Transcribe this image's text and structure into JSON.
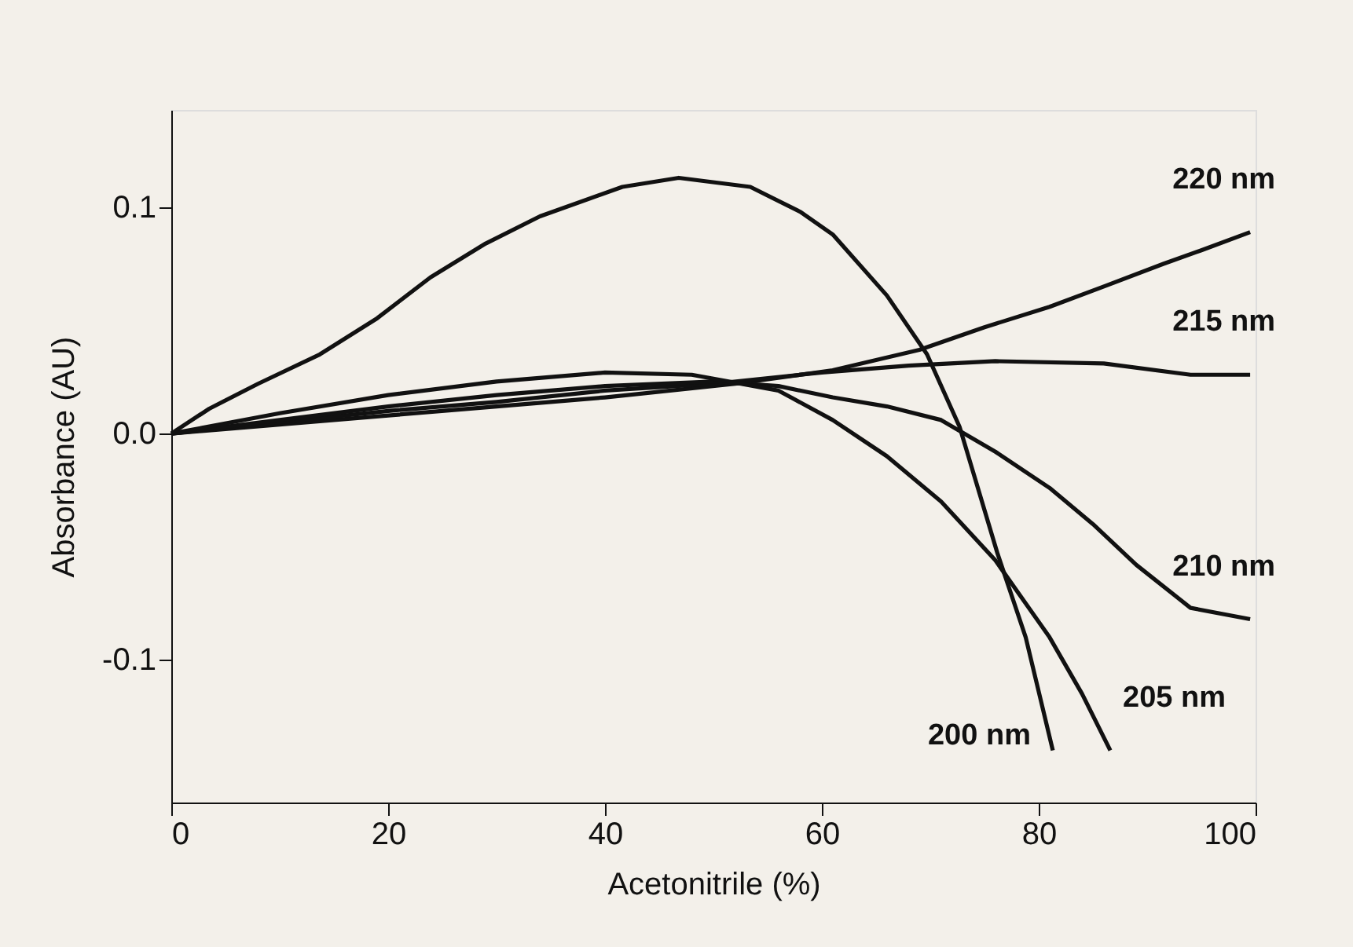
{
  "chart_data": {
    "type": "line",
    "xlabel": "Acetonitrile (%)",
    "ylabel": "Absorbance (AU)",
    "xlim": [
      0,
      100
    ],
    "ylim": [
      -0.163,
      0.143
    ],
    "xticks": [
      0,
      20,
      40,
      60,
      80,
      100
    ],
    "yticks": [
      {
        "value": -0.1,
        "label": "-0.1"
      },
      {
        "value": 0,
        "label": "0.0"
      },
      {
        "value": 0.1,
        "label": "0.1"
      }
    ],
    "grid": false,
    "marker": "none",
    "line_style": "solid",
    "series": [
      {
        "name": "220 nm",
        "color": "#111111",
        "x": [
          0,
          10,
          20,
          30,
          40,
          52,
          61,
          69,
          75,
          81,
          86,
          91.5,
          95,
          99.5
        ],
        "values": [
          0,
          0.004,
          0.008,
          0.012,
          0.016,
          0.022,
          0.028,
          0.037,
          0.047,
          0.056,
          0.065,
          0.075,
          0.081,
          0.089
        ]
      },
      {
        "name": "215 nm",
        "color": "#111111",
        "x": [
          0,
          10,
          20,
          30,
          40,
          50,
          60,
          68,
          76,
          86,
          94,
          99.5
        ],
        "values": [
          0,
          0.005,
          0.01,
          0.014,
          0.019,
          0.022,
          0.027,
          0.03,
          0.032,
          0.031,
          0.026,
          0.026
        ]
      },
      {
        "name": "210 nm",
        "color": "#111111",
        "x": [
          0,
          10,
          20,
          30,
          40,
          50,
          56,
          61,
          66,
          71,
          76,
          81,
          85,
          89,
          94,
          99.5
        ],
        "values": [
          0,
          0.006,
          0.012,
          0.017,
          0.021,
          0.023,
          0.021,
          0.016,
          0.012,
          0.006,
          -0.008,
          -0.024,
          -0.04,
          -0.058,
          -0.077,
          -0.082
        ]
      },
      {
        "name": "205 nm",
        "color": "#111111",
        "x": [
          0,
          10,
          20,
          30,
          40,
          48,
          56,
          61,
          66,
          71,
          76,
          81,
          84,
          86.6
        ],
        "values": [
          0,
          0.009,
          0.017,
          0.023,
          0.027,
          0.026,
          0.019,
          0.006,
          -0.01,
          -0.03,
          -0.056,
          -0.09,
          -0.115,
          -0.14
        ]
      },
      {
        "name": "200 nm",
        "color": "#111111",
        "x": [
          0,
          3.5,
          8,
          13.7,
          19,
          23.9,
          29,
          34,
          41.6,
          46.8,
          53.4,
          58,
          61,
          66,
          69.7,
          72.7,
          76.2,
          78.8,
          81.3
        ],
        "values": [
          0,
          0.011,
          0.022,
          0.035,
          0.051,
          0.069,
          0.084,
          0.096,
          0.109,
          0.113,
          0.109,
          0.098,
          0.088,
          0.061,
          0.035,
          0.003,
          -0.053,
          -0.09,
          -0.14
        ]
      }
    ]
  }
}
